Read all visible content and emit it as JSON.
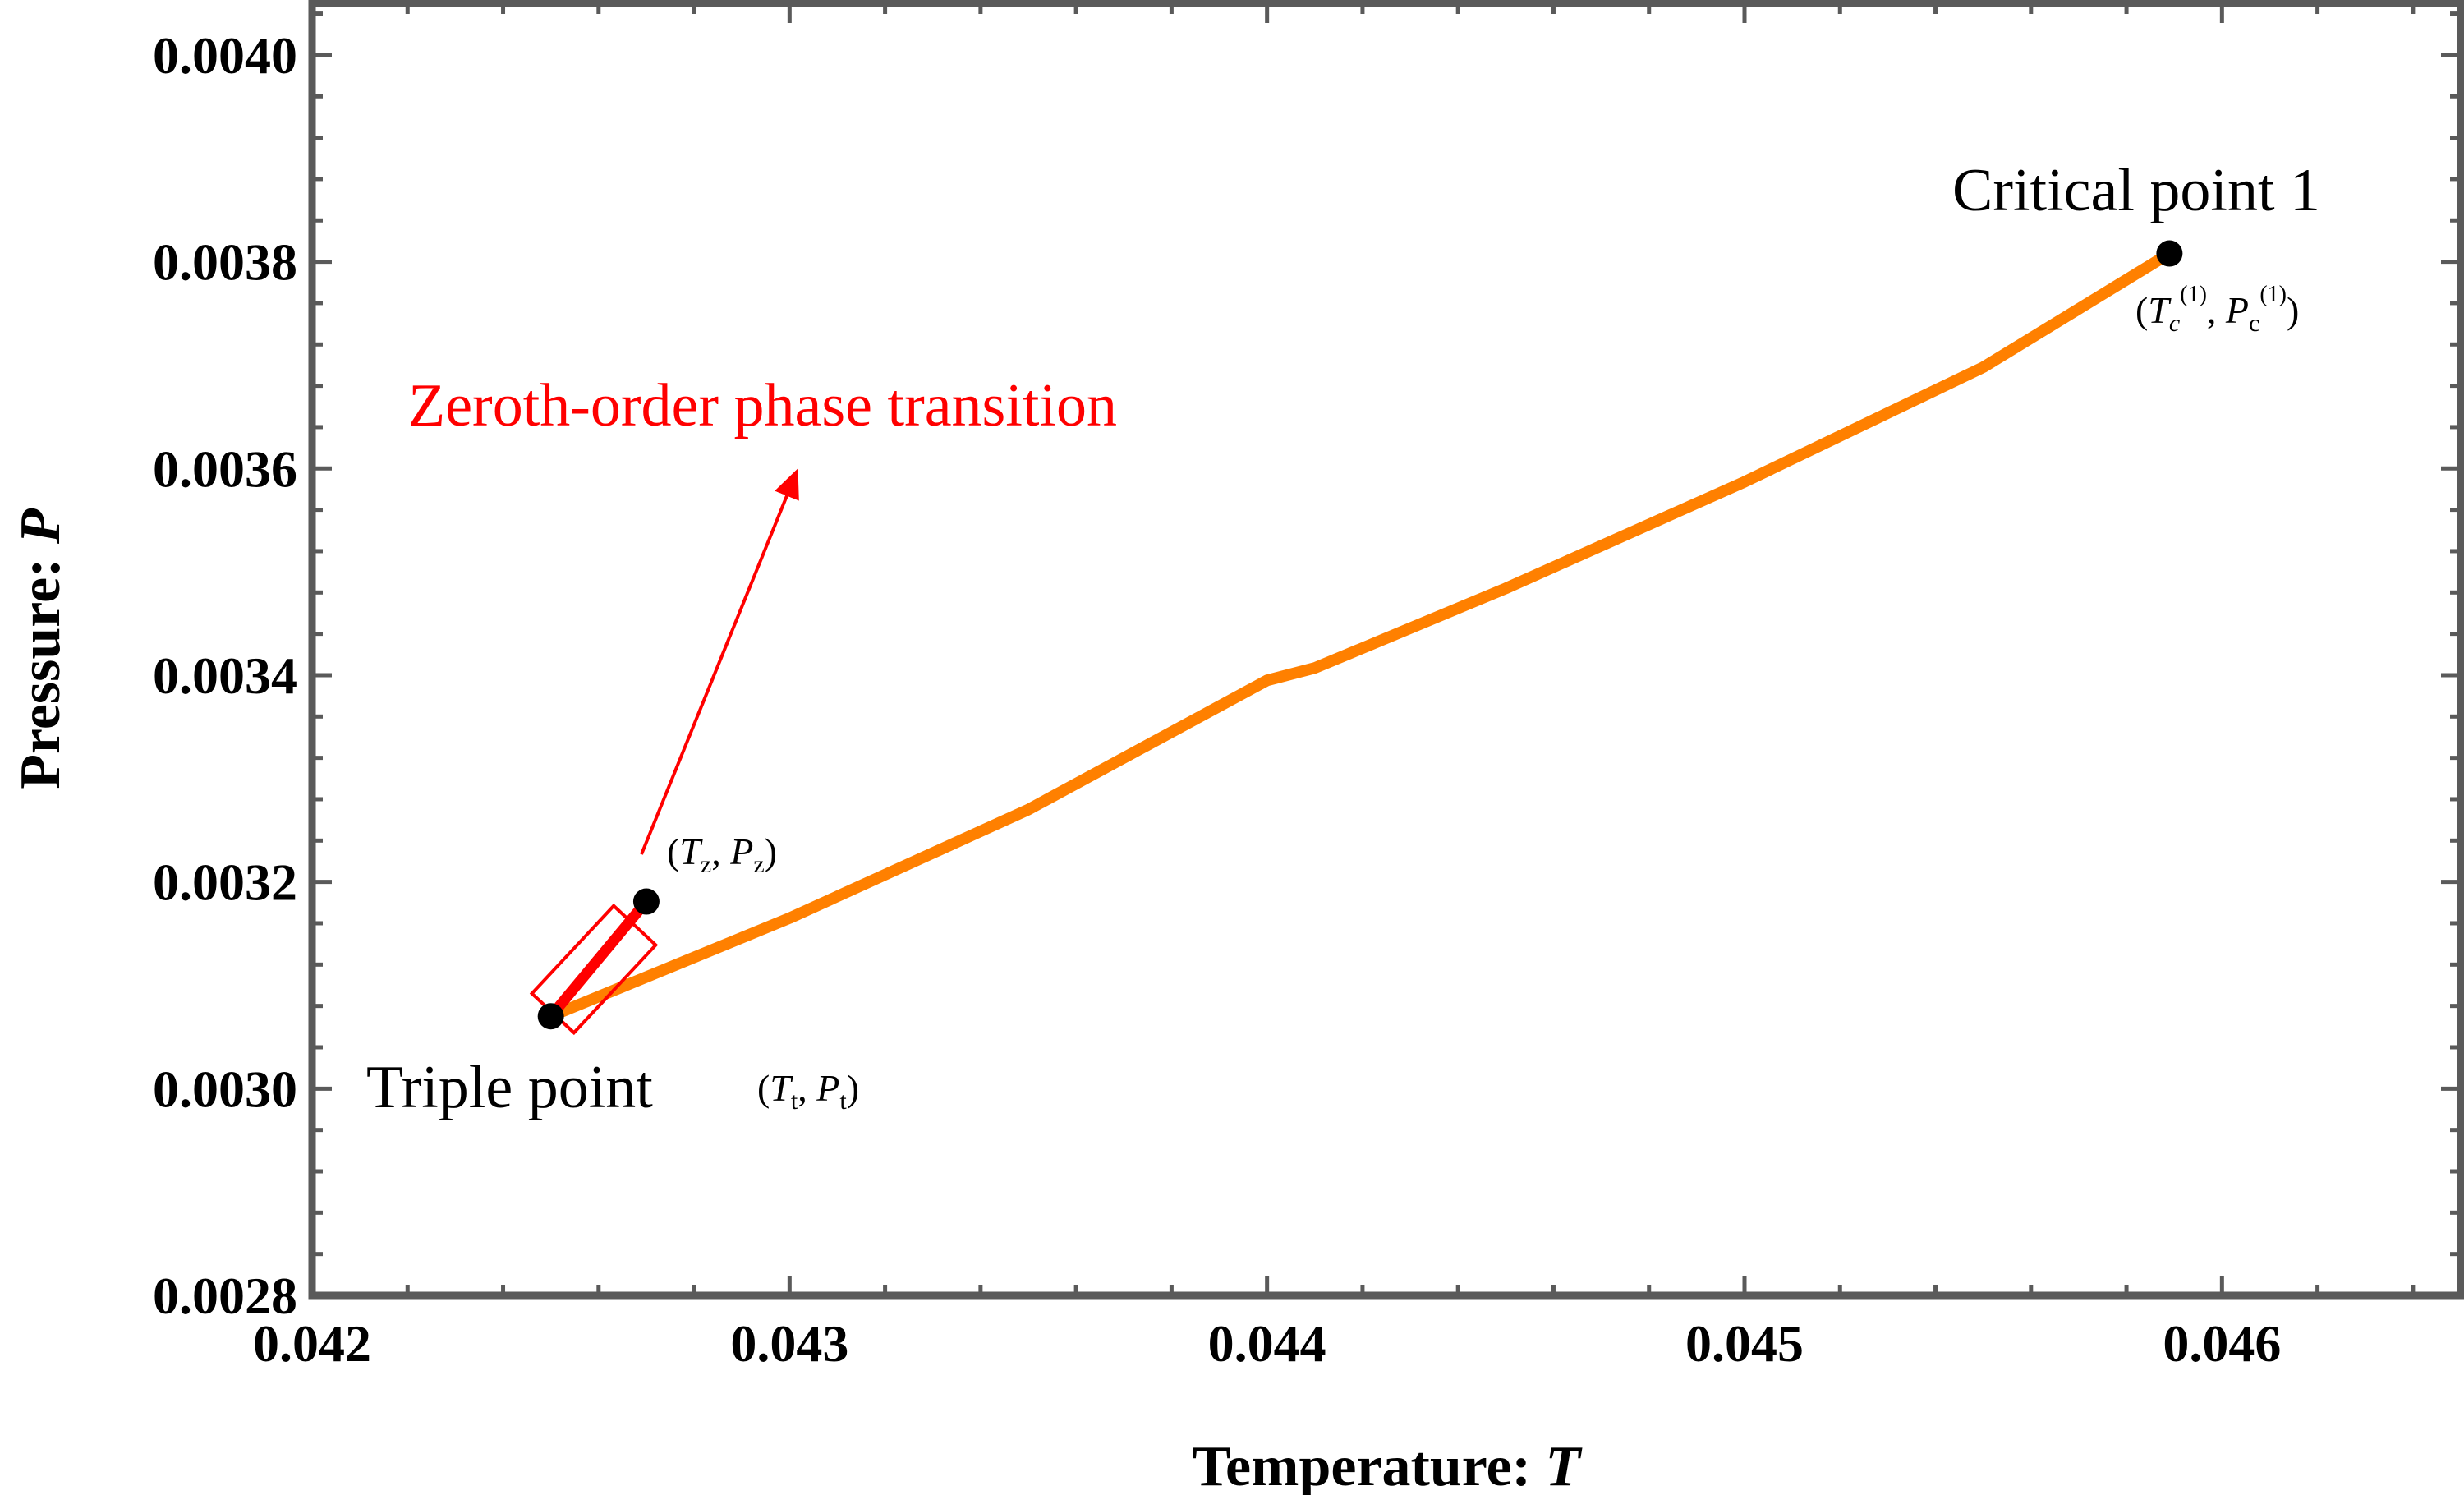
{
  "chart_data": {
    "type": "line",
    "xlabel": "Temperature: T",
    "xlabel_main": "Temperature: ",
    "xlabel_var": "T",
    "ylabel": "Pressure: P",
    "ylabel_main": "Pressure: ",
    "ylabel_var": "P",
    "xlim": [
      0.042,
      0.0465
    ],
    "ylim": [
      0.0028,
      0.00405
    ],
    "x_ticks": [
      0.042,
      0.043,
      0.044,
      0.045,
      0.046
    ],
    "x_tick_labels": [
      "0.042",
      "0.043",
      "0.044",
      "0.045",
      "0.046"
    ],
    "y_ticks": [
      0.0028,
      0.003,
      0.0032,
      0.0034,
      0.0036,
      0.0038,
      0.004
    ],
    "y_tick_labels": [
      "0.0028",
      "0.0030",
      "0.0032",
      "0.0034",
      "0.0036",
      "0.0038",
      "0.0040"
    ],
    "grid": false,
    "series": [
      {
        "color": "#ff8000",
        "x": [
          0.0425,
          0.043,
          0.0435,
          0.044,
          0.0441,
          0.0445,
          0.045,
          0.0455,
          0.04589
        ],
        "y": [
          0.00307,
          0.003165,
          0.00327,
          0.003395,
          0.003407,
          0.003484,
          0.003587,
          0.003698,
          0.003808
        ]
      },
      {
        "color": "#ff0000",
        "x": [
          0.0425,
          0.0427
        ],
        "y": [
          0.00307,
          0.003181
        ]
      }
    ],
    "points": [
      {
        "x": 0.0425,
        "y": 0.00307,
        "label": "Triple point",
        "coords": "(Tt, Pt)"
      },
      {
        "x": 0.0427,
        "y": 0.003181,
        "label": "",
        "coords": "(Tz, Pz)"
      },
      {
        "x": 0.04589,
        "y": 0.003808,
        "label": "Critical point 1",
        "coords": "(Tc(1), Pc(1))"
      }
    ],
    "annotations": {
      "triple_point": "Triple point",
      "critical_point": "Critical point 1",
      "zeroth_order": "Zeroth-order phase transition",
      "tt": {
        "open": "(",
        "T": "T",
        "T_sub": "t",
        "sep": ", ",
        "P": "P",
        "P_sub": "t",
        "close": ")"
      },
      "tz": {
        "open": "(",
        "T": "T",
        "T_sub": "z",
        "sep": ", ",
        "P": "P",
        "P_sub": "z",
        "close": ")"
      },
      "tc": {
        "open": "(",
        "T": "T",
        "T_sub": "c",
        "T_sup": "(1)",
        "sep": ", ",
        "P": "P",
        "P_sub": "c",
        "P_sup": "(1)",
        "close": ")"
      }
    },
    "colors": {
      "frame": "#5a5a5a",
      "main_line": "#ff8000",
      "highlight": "#ff0000",
      "point": "#000000"
    }
  }
}
